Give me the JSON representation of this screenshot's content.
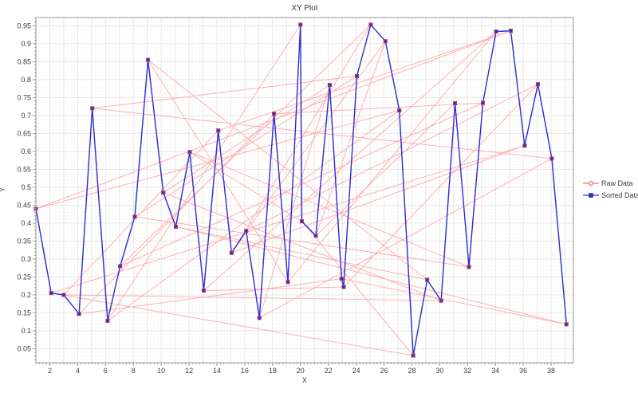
{
  "chart_data": {
    "type": "line",
    "title": "XY Plot",
    "xlabel": "X",
    "ylabel": "Y",
    "xlim": [
      1,
      39.6
    ],
    "ylim": [
      0.011,
      0.973
    ],
    "grid": "on",
    "legend_position": "right",
    "x_major_ticks": [
      2,
      4,
      6,
      8,
      10,
      12,
      14,
      16,
      18,
      20,
      22,
      24,
      26,
      28,
      30,
      32,
      34,
      36,
      38
    ],
    "y_major_ticks": [
      0.05,
      0.1,
      0.15,
      0.2,
      0.25,
      0.3,
      0.35,
      0.4,
      0.45,
      0.5,
      0.55,
      0.6,
      0.65,
      0.7,
      0.75,
      0.8,
      0.85,
      0.9,
      0.95
    ],
    "y_tick_labels": [
      "0.05",
      "0.1",
      "0.15",
      "0.2",
      "0.25",
      "0.3",
      "0.35",
      "0.4",
      "0.45",
      "0.5",
      "0.55",
      "0.6",
      "0.65",
      "0.7",
      "0.75",
      "0.8",
      "0.85",
      "0.9",
      "0.95"
    ],
    "points": [
      [
        1.0,
        0.44
      ],
      [
        2.1,
        0.205
      ],
      [
        3.0,
        0.2
      ],
      [
        4.1,
        0.147
      ],
      [
        5.05,
        0.72
      ],
      [
        6.15,
        0.128
      ],
      [
        7.05,
        0.28
      ],
      [
        8.1,
        0.418
      ],
      [
        9.05,
        0.855
      ],
      [
        10.15,
        0.485
      ],
      [
        11.05,
        0.39
      ],
      [
        12.05,
        0.598
      ],
      [
        13.05,
        0.212
      ],
      [
        14.1,
        0.658
      ],
      [
        15.05,
        0.317
      ],
      [
        16.1,
        0.378
      ],
      [
        17.05,
        0.136
      ],
      [
        18.1,
        0.705
      ],
      [
        19.1,
        0.236
      ],
      [
        20.0,
        0.953
      ],
      [
        20.1,
        0.405
      ],
      [
        21.1,
        0.365
      ],
      [
        22.1,
        0.785
      ],
      [
        22.95,
        0.245
      ],
      [
        23.1,
        0.222
      ],
      [
        24.05,
        0.81
      ],
      [
        25.05,
        0.953
      ],
      [
        26.1,
        0.907
      ],
      [
        27.1,
        0.714
      ],
      [
        28.1,
        0.031
      ],
      [
        29.1,
        0.242
      ],
      [
        30.1,
        0.184
      ],
      [
        31.1,
        0.734
      ],
      [
        32.1,
        0.278
      ],
      [
        33.1,
        0.735
      ],
      [
        34.05,
        0.934
      ],
      [
        35.1,
        0.936
      ],
      [
        36.1,
        0.616
      ],
      [
        37.05,
        0.787
      ],
      [
        38.05,
        0.58
      ],
      [
        39.1,
        0.118
      ]
    ],
    "series": [
      {
        "name": "Raw Data",
        "line_color": "#ff9e9e",
        "marker": "open-circle",
        "marker_color": "#e84b4b",
        "order": "original random order (same points, shuffled)",
        "order_indices": [
          19,
          5,
          28,
          0,
          36,
          13,
          2,
          31,
          9,
          22,
          16,
          39,
          4,
          25,
          7,
          33,
          11,
          20,
          29,
          1,
          37,
          14,
          26,
          6,
          34,
          17,
          3,
          23,
          40,
          10,
          30,
          8,
          18,
          35,
          12,
          24,
          38,
          15,
          27,
          21,
          32
        ]
      },
      {
        "name": "Sorted Data",
        "line_color": "#2b2bd1",
        "marker": "filled-square",
        "marker_color": "#2b2bd1",
        "order": "ascending x"
      }
    ],
    "colors": {
      "background": "#ffffff",
      "plot_background": "#ffffff",
      "axis_border": "#9a9a9a",
      "major_grid": "#e7e7e7",
      "minor_grid": "#f2f2f2",
      "tick_label": "#3c3c3c"
    }
  }
}
